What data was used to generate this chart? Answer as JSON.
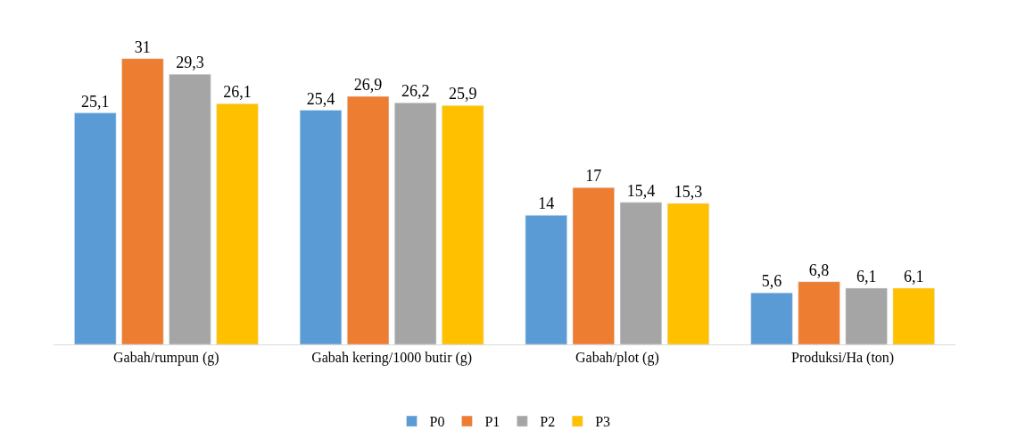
{
  "chart_data": {
    "type": "bar",
    "categories": [
      "Gabah/rumpun (g)",
      "Gabah kering/1000 butir (g)",
      "Gabah/plot (g)",
      "Produksi/Ha (ton)"
    ],
    "series": [
      {
        "name": "P0",
        "color": "#5b9bd5",
        "values": [
          25.1,
          25.4,
          14,
          5.6
        ],
        "value_labels": [
          "25,1",
          "25,4",
          "14",
          "5,6"
        ]
      },
      {
        "name": "P1",
        "color": "#ed7d31",
        "values": [
          31,
          26.9,
          17,
          6.8
        ],
        "value_labels": [
          "31",
          "26,9",
          "17",
          "6,8"
        ]
      },
      {
        "name": "P2",
        "color": "#a5a5a5",
        "values": [
          29.3,
          26.2,
          15.4,
          6.1
        ],
        "value_labels": [
          "29,3",
          "26,2",
          "15,4",
          "6,1"
        ]
      },
      {
        "name": "P3",
        "color": "#ffc000",
        "values": [
          26.1,
          25.9,
          15.3,
          6.1
        ],
        "value_labels": [
          "26,1",
          "25,9",
          "15,3",
          "6,1"
        ]
      }
    ],
    "legend": "bottom",
    "tick_labels": "x"
  }
}
